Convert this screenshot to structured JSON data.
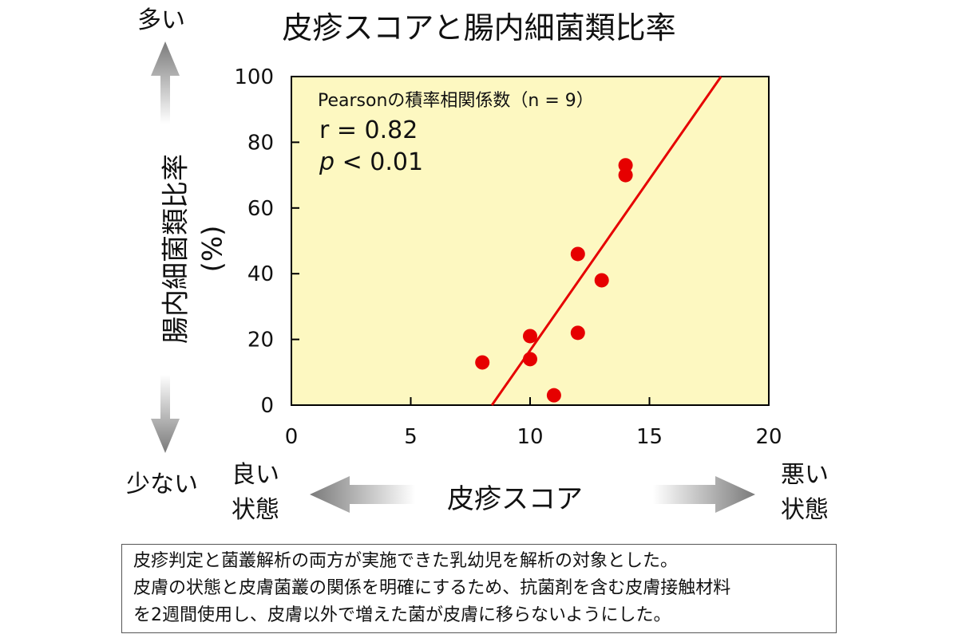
{
  "title": "皮疹スコアと腸内細菌類比率",
  "top_left_label": "多い",
  "bottom_left_label": "少ない",
  "good_state_label": [
    "良い",
    "状態"
  ],
  "bad_state_label": [
    "悪い",
    "状態"
  ],
  "x_axis_title": "皮疹スコア",
  "y_axis_title": "腸内細菌類比率",
  "y_axis_unit": "(%)",
  "annotation": {
    "line1": "Pearsonの積率相関係数（n = 9）",
    "r_text": "r = 0.82",
    "p_symbol": "p",
    "p_text": " < 0.01"
  },
  "note_lines": [
    "皮疹判定と菌叢解析の両方が実施できた乳幼児を解析の対象とした。",
    "皮膚の状態と皮膚菌叢の関係を明確にするため、抗菌剤を含む皮膚接触材料",
    "を2週間使用し、皮膚以外で増えた菌が皮膚に移らないようにした。"
  ],
  "colors": {
    "plot_bg": "#fdf8c1",
    "points": "#e60000",
    "fit_line": "#e60000",
    "arrow_gray": "#8a8a8a"
  },
  "chart_data": {
    "type": "scatter",
    "x": [
      8,
      10,
      10,
      11,
      12,
      12,
      13,
      14,
      14
    ],
    "y": [
      13,
      21,
      14,
      3,
      46,
      22,
      38,
      73,
      70
    ],
    "xlim": [
      0,
      20
    ],
    "ylim": [
      0,
      100
    ],
    "xticks": [
      0,
      5,
      10,
      15,
      20
    ],
    "yticks": [
      0,
      20,
      40,
      60,
      80,
      100
    ],
    "trend_line": {
      "x_start": 8.4,
      "x_end": 18.0,
      "y_start": 0,
      "y_end": 100
    },
    "grid": false,
    "xlabel": "皮疹スコア",
    "ylabel": "腸内細菌類比率 (%)"
  }
}
